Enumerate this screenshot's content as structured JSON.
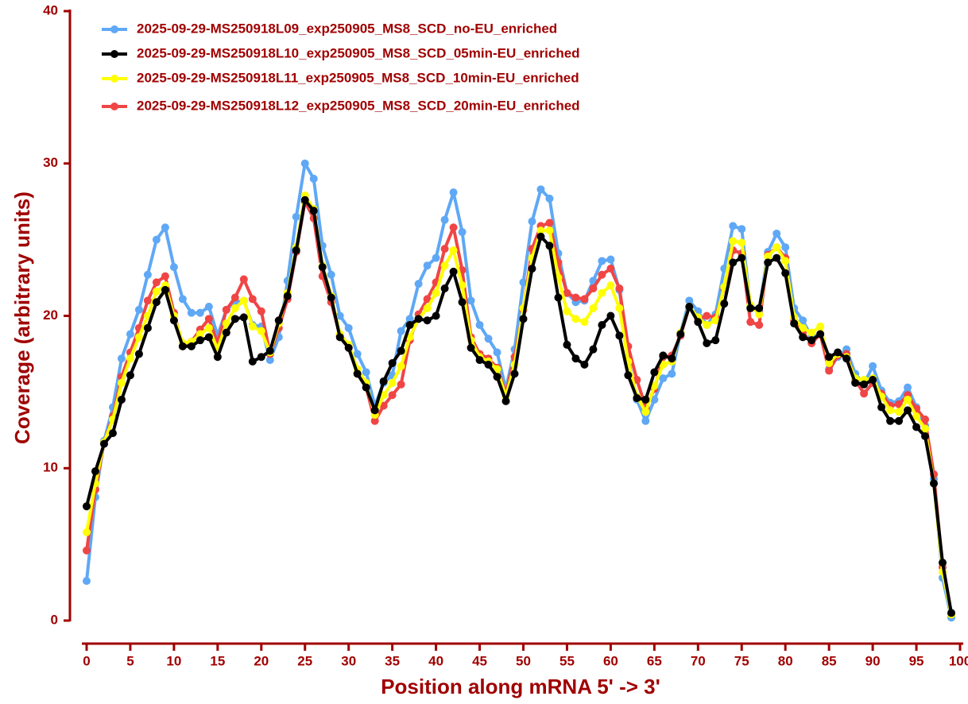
{
  "chart_data": {
    "type": "line",
    "x_label": "Position along mRNA 5' -> 3'",
    "y_label": "Coverage (arbitrary units)",
    "x": [
      0,
      1,
      2,
      3,
      4,
      5,
      6,
      7,
      8,
      9,
      10,
      11,
      12,
      13,
      14,
      15,
      16,
      17,
      18,
      19,
      20,
      21,
      22,
      23,
      24,
      25,
      26,
      27,
      28,
      29,
      30,
      31,
      32,
      33,
      34,
      35,
      36,
      37,
      38,
      39,
      40,
      41,
      42,
      43,
      44,
      45,
      46,
      47,
      48,
      49,
      50,
      51,
      52,
      53,
      54,
      55,
      56,
      57,
      58,
      59,
      60,
      61,
      62,
      63,
      64,
      65,
      66,
      67,
      68,
      69,
      70,
      71,
      72,
      73,
      74,
      75,
      76,
      77,
      78,
      79,
      80,
      81,
      82,
      83,
      84,
      85,
      86,
      87,
      88,
      89,
      90,
      91,
      92,
      93,
      94,
      95,
      96,
      97,
      98,
      99
    ],
    "xlim": [
      -0.5,
      100.3
    ],
    "xticks": [
      0,
      5,
      10,
      15,
      20,
      25,
      30,
      35,
      40,
      45,
      50,
      55,
      60,
      65,
      70,
      75,
      80,
      85,
      90,
      95,
      100
    ],
    "ylim": [
      0,
      40
    ],
    "yticks": [
      0,
      10,
      20,
      30,
      40
    ],
    "legend": "top-left",
    "series": [
      {
        "name": "2025-09-29-MS250918L09_exp250905_MS8_SCD_no-EU_enriched",
        "color": "#5fa8f5",
        "values": [
          2.6,
          8.1,
          11.8,
          14.0,
          17.2,
          18.8,
          20.4,
          22.7,
          25.0,
          25.8,
          23.2,
          21.1,
          20.2,
          20.2,
          20.6,
          18.7,
          20.4,
          20.9,
          21.0,
          19.4,
          19.3,
          17.1,
          18.6,
          22.3,
          26.5,
          30.0,
          29.0,
          24.6,
          22.7,
          20.0,
          19.2,
          17.5,
          16.3,
          14.1,
          15.6,
          16.1,
          19.0,
          19.8,
          22.1,
          23.3,
          23.8,
          26.3,
          28.1,
          25.5,
          21.0,
          19.4,
          18.5,
          17.6,
          15.2,
          17.8,
          22.2,
          26.2,
          28.3,
          27.7,
          24.1,
          21.5,
          20.9,
          21.0,
          22.3,
          23.6,
          23.7,
          21.7,
          17.2,
          14.5,
          13.1,
          14.5,
          15.9,
          16.2,
          18.9,
          21.0,
          20.3,
          19.4,
          20.1,
          23.1,
          25.9,
          25.7,
          20.6,
          20.3,
          24.2,
          25.4,
          24.5,
          20.5,
          19.7,
          18.6,
          18.8,
          16.5,
          17.3,
          17.8,
          16.2,
          15.5,
          16.7,
          15.1,
          14.3,
          14.4,
          15.3,
          14.0,
          12.8,
          9.3,
          2.8,
          0.2
        ]
      },
      {
        "name": "2025-09-29-MS250918L10_exp250905_MS8_SCD_05min-EU_enriched",
        "color": "#000000",
        "values": [
          7.5,
          9.8,
          11.6,
          12.3,
          14.5,
          16.1,
          17.5,
          19.2,
          20.9,
          21.7,
          19.7,
          18.0,
          18.0,
          18.4,
          18.6,
          17.3,
          18.9,
          19.8,
          19.9,
          17.0,
          17.3,
          17.7,
          19.7,
          21.3,
          24.3,
          27.6,
          26.9,
          23.2,
          21.2,
          18.6,
          17.9,
          16.2,
          15.3,
          13.8,
          15.7,
          16.9,
          17.7,
          19.4,
          19.8,
          19.7,
          20.0,
          21.8,
          22.9,
          20.9,
          17.9,
          17.1,
          16.8,
          16.0,
          14.4,
          16.2,
          19.8,
          23.1,
          25.2,
          24.6,
          21.2,
          18.1,
          17.2,
          16.8,
          17.8,
          19.4,
          20.0,
          18.7,
          16.1,
          14.6,
          14.5,
          16.3,
          17.4,
          17.2,
          18.8,
          20.6,
          19.6,
          18.2,
          18.4,
          20.8,
          23.5,
          23.8,
          20.5,
          20.5,
          23.5,
          23.8,
          22.8,
          19.5,
          18.6,
          18.4,
          18.8,
          17.3,
          17.6,
          17.2,
          15.6,
          15.5,
          15.8,
          14.0,
          13.1,
          13.1,
          13.8,
          12.7,
          12.1,
          9.0,
          3.8,
          0.5
        ]
      },
      {
        "name": "2025-09-29-MS250918L11_exp250905_MS8_SCD_10min-EU_enriched",
        "color": "#ffff00",
        "values": [
          5.8,
          9.0,
          11.7,
          13.2,
          15.6,
          17.2,
          18.6,
          20.0,
          21.6,
          22.0,
          20.0,
          18.2,
          18.3,
          18.8,
          19.2,
          17.8,
          19.5,
          20.5,
          21.0,
          19.3,
          19.0,
          17.6,
          19.5,
          21.5,
          24.5,
          27.9,
          27.0,
          23.3,
          21.3,
          18.8,
          18.1,
          16.5,
          15.6,
          13.5,
          14.8,
          15.6,
          16.7,
          18.6,
          19.8,
          20.5,
          21.5,
          23.3,
          24.3,
          22.0,
          18.4,
          17.3,
          17.0,
          16.5,
          14.7,
          16.8,
          20.5,
          23.8,
          25.6,
          25.6,
          22.5,
          20.3,
          19.8,
          19.6,
          20.5,
          21.5,
          22.0,
          20.5,
          17.0,
          14.7,
          13.7,
          15.4,
          16.8,
          17.0,
          18.9,
          20.6,
          19.9,
          19.4,
          19.7,
          21.9,
          24.9,
          24.8,
          20.7,
          20.1,
          23.9,
          24.5,
          23.6,
          19.9,
          19.2,
          18.9,
          19.3,
          16.9,
          17.5,
          17.3,
          15.9,
          15.8,
          15.9,
          14.7,
          13.8,
          13.7,
          14.5,
          13.4,
          12.6,
          9.0,
          3.2,
          0.4
        ]
      },
      {
        "name": "2025-09-29-MS250918L12_exp250905_MS8_SCD_20min-EU_enriched",
        "color": "#f04545",
        "values": [
          4.6,
          8.6,
          11.7,
          13.4,
          16.0,
          17.6,
          19.2,
          21.0,
          22.2,
          22.6,
          20.2,
          18.0,
          18.3,
          19.1,
          19.8,
          18.2,
          20.4,
          21.2,
          22.4,
          21.1,
          20.3,
          17.5,
          19.2,
          21.1,
          24.2,
          27.5,
          26.4,
          22.6,
          20.9,
          18.7,
          17.9,
          16.2,
          15.3,
          13.1,
          14.1,
          14.8,
          15.5,
          18.4,
          20.1,
          21.1,
          22.2,
          24.4,
          25.8,
          23.0,
          18.6,
          17.5,
          17.2,
          16.6,
          14.9,
          17.3,
          20.4,
          24.4,
          25.9,
          26.1,
          23.5,
          21.5,
          21.2,
          21.1,
          21.8,
          22.7,
          23.1,
          21.8,
          18.0,
          15.8,
          14.0,
          15.2,
          17.3,
          17.4,
          18.7,
          20.6,
          19.8,
          20.0,
          19.9,
          21.8,
          24.3,
          24.1,
          19.6,
          19.4,
          24.0,
          24.5,
          23.8,
          19.7,
          18.9,
          18.2,
          18.8,
          16.4,
          17.4,
          17.5,
          15.8,
          14.9,
          15.6,
          14.9,
          14.1,
          14.2,
          14.8,
          13.9,
          13.2,
          9.6,
          3.5,
          0.4
        ]
      }
    ]
  }
}
